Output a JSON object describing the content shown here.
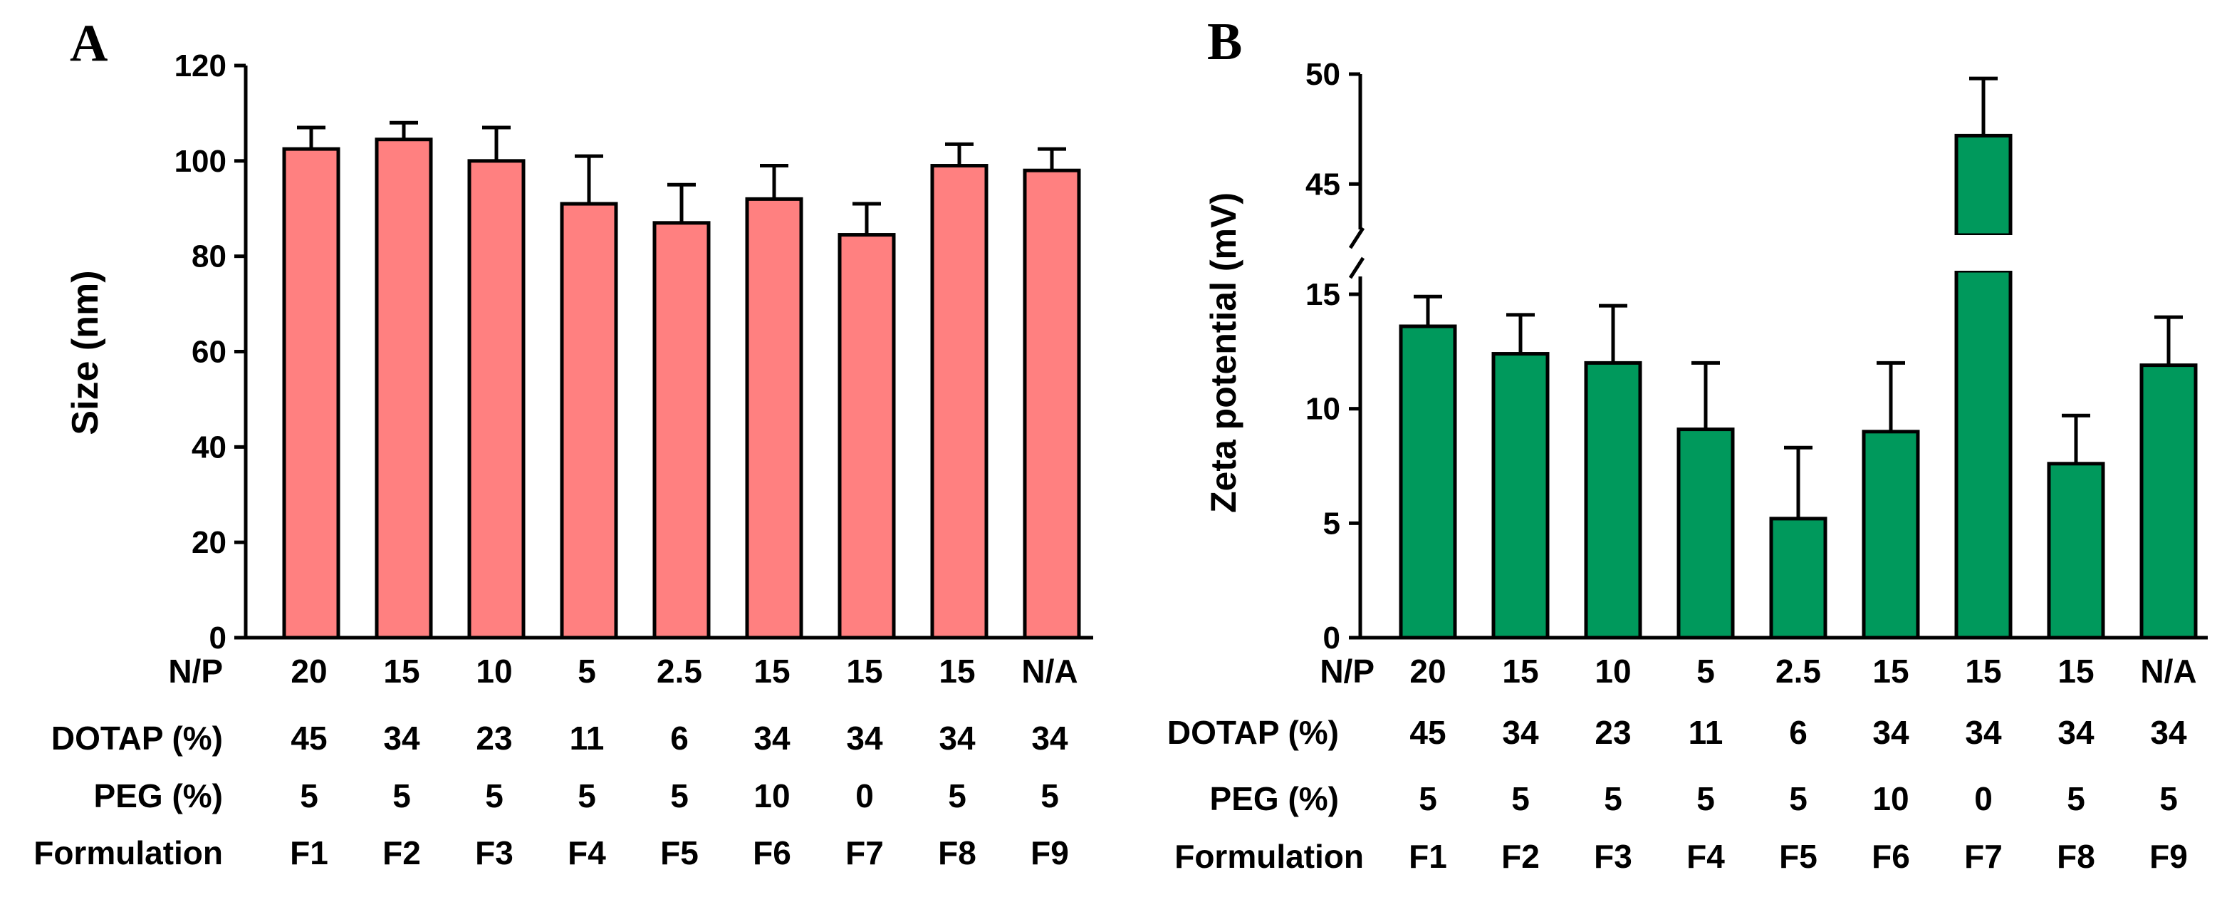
{
  "chart_data": [
    {
      "type": "bar",
      "panel": "A",
      "ylabel": "Size (nm)",
      "ylim": [
        0,
        120
      ],
      "yticks": [
        0,
        20,
        40,
        60,
        80,
        100,
        120
      ],
      "categories": [
        "F1",
        "F2",
        "F3",
        "F4",
        "F5",
        "F6",
        "F7",
        "F8",
        "F9"
      ],
      "values": [
        102.5,
        104.5,
        100,
        91,
        87,
        92,
        84.5,
        99,
        98
      ],
      "errors": [
        4.5,
        3.5,
        7,
        10,
        8,
        7,
        6.5,
        4.5,
        4.5
      ],
      "bar_color": "#FF8080",
      "table": {
        "labels": [
          "N/P",
          "DOTAP (%)",
          "PEG (%)",
          "Formulation"
        ],
        "rows": [
          [
            "20",
            "15",
            "10",
            "5",
            "2.5",
            "15",
            "15",
            "15",
            "N/A"
          ],
          [
            "45",
            "34",
            "23",
            "11",
            "6",
            "34",
            "34",
            "34",
            "34"
          ],
          [
            "5",
            "5",
            "5",
            "5",
            "5",
            "10",
            "0",
            "5",
            "5"
          ],
          [
            "F1",
            "F2",
            "F3",
            "F4",
            "F5",
            "F6",
            "F7",
            "F8",
            "F9"
          ]
        ]
      }
    },
    {
      "type": "bar",
      "panel": "B",
      "ylabel": "Zeta potential (mV)",
      "axis_break": [
        15,
        43
      ],
      "ylim_lower": [
        0,
        15
      ],
      "ylim_upper": [
        43,
        50
      ],
      "yticks": [
        0,
        5,
        10,
        15,
        45,
        50
      ],
      "categories": [
        "F1",
        "F2",
        "F3",
        "F4",
        "F5",
        "F6",
        "F7",
        "F8",
        "F9"
      ],
      "values": [
        13.6,
        12.4,
        12,
        9.1,
        5.2,
        9,
        47.2,
        7.6,
        11.9
      ],
      "errors": [
        1.3,
        1.7,
        2.5,
        2.9,
        3.1,
        3,
        2.6,
        2.1,
        2.1
      ],
      "bar_color": "#00995C",
      "table": {
        "labels": [
          "N/P",
          "DOTAP (%)",
          "PEG (%)",
          "Formulation"
        ],
        "rows": [
          [
            "20",
            "15",
            "10",
            "5",
            "2.5",
            "15",
            "15",
            "15",
            "N/A"
          ],
          [
            "45",
            "34",
            "23",
            "11",
            "6",
            "34",
            "34",
            "34",
            "34"
          ],
          [
            "5",
            "5",
            "5",
            "5",
            "5",
            "10",
            "0",
            "5",
            "5"
          ],
          [
            "F1",
            "F2",
            "F3",
            "F4",
            "F5",
            "F6",
            "F7",
            "F8",
            "F9"
          ]
        ]
      }
    }
  ]
}
